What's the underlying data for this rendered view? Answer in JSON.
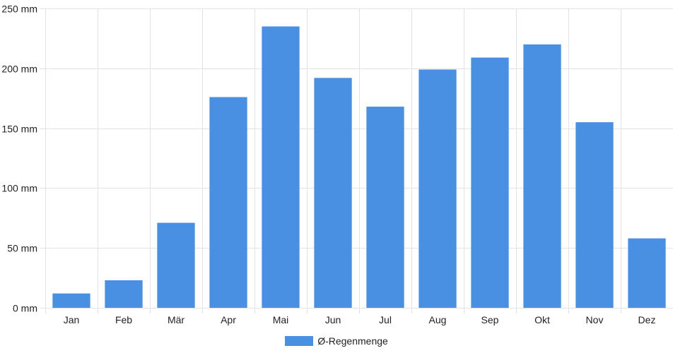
{
  "chart_data": {
    "type": "bar",
    "categories": [
      "Jan",
      "Feb",
      "Mär",
      "Apr",
      "Mai",
      "Jun",
      "Jul",
      "Aug",
      "Sep",
      "Okt",
      "Nov",
      "Dez"
    ],
    "series": [
      {
        "name": "Ø-Regenmenge",
        "values": [
          12,
          23,
          71,
          176,
          235,
          192,
          168,
          199,
          209,
          220,
          155,
          58
        ],
        "color": "#4a90e2"
      }
    ],
    "ylim": [
      0,
      250
    ],
    "yticks": [
      {
        "value": 0,
        "label": "0 mm"
      },
      {
        "value": 50,
        "label": "50 mm"
      },
      {
        "value": 100,
        "label": "100 mm"
      },
      {
        "value": 150,
        "label": "150 mm"
      },
      {
        "value": 200,
        "label": "200 mm"
      },
      {
        "value": 250,
        "label": "250 mm"
      }
    ],
    "grid": true,
    "legend_position": "bottom-center"
  }
}
